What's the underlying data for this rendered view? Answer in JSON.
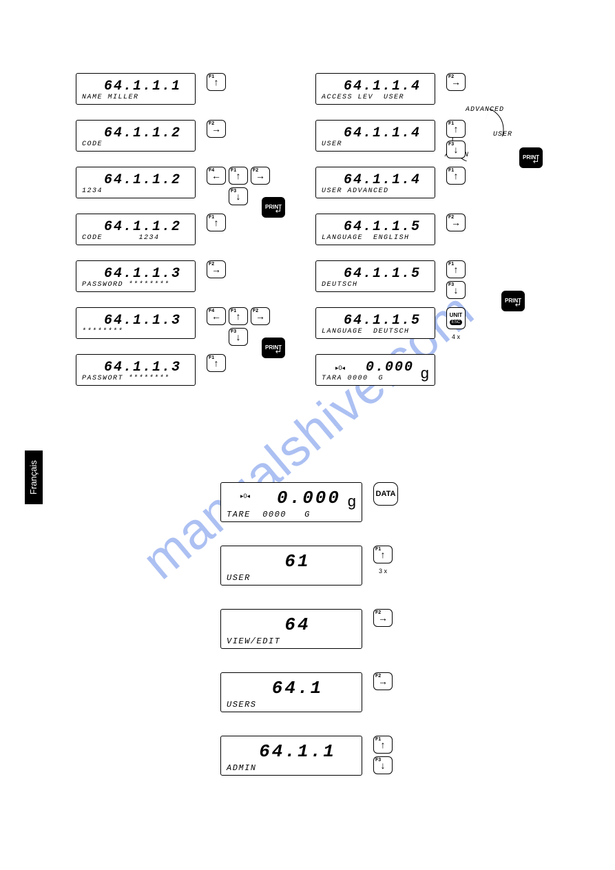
{
  "watermark": "manualshive.com",
  "sideTab": "Français",
  "left": [
    {
      "main": "64.1.1.1",
      "sub": "NAME MILLER",
      "keys": [
        [
          "F1",
          "↑"
        ]
      ]
    },
    {
      "main": "64.1.1.2",
      "sub": "CODE",
      "keys": [
        [
          "F2",
          "→"
        ]
      ]
    },
    {
      "main": "64.1.1.2",
      "sub": "1234",
      "keys": [
        [
          "F4",
          "←"
        ],
        [
          [
            "F1",
            "↑"
          ],
          [
            "F3",
            "↓"
          ]
        ],
        [
          "F2",
          "→"
        ]
      ],
      "trail": "print"
    },
    {
      "main": "64.1.1.2",
      "sub": "CODE       1234",
      "keys": [
        [
          "F1",
          "↑"
        ]
      ]
    },
    {
      "main": "64.1.1.3",
      "sub": "PASSWORD ********",
      "keys": [
        [
          "F2",
          "→"
        ]
      ]
    },
    {
      "main": "64.1.1.3",
      "sub": "********",
      "keys": [
        [
          "F4",
          "←"
        ],
        [
          [
            "F1",
            "↑"
          ],
          [
            "F3",
            "↓"
          ]
        ],
        [
          "F2",
          "→"
        ]
      ],
      "trail": "print"
    },
    {
      "main": "64.1.1.3",
      "sub": "PASSWORT ********",
      "keys": [
        [
          "F1",
          "↑"
        ]
      ]
    }
  ],
  "right": [
    {
      "main": "64.1.1.4",
      "sub": "ACCESS LEV  USER",
      "keys": [
        [
          "F2",
          "→"
        ]
      ]
    },
    {
      "main": "64.1.1.4",
      "sub": "USER",
      "special": "cycle"
    },
    {
      "main": "64.1.1.4",
      "sub": "USER ADVANCED",
      "keys": [
        [
          "F1",
          "↑"
        ]
      ]
    },
    {
      "main": "64.1.1.5",
      "sub": "LANGUAGE  ENGLISH",
      "keys": [
        [
          "F2",
          "→"
        ]
      ]
    },
    {
      "main": "64.1.1.5",
      "sub": "DEUTSCH",
      "keys": [
        [
          [
            "F1",
            "↑"
          ],
          [
            "F3",
            "↓"
          ]
        ]
      ],
      "trail": "print"
    },
    {
      "main": "64.1.1.5",
      "sub": "LANGUAGE  DEUTSCH",
      "special": "unit"
    },
    {
      "main": "0.000",
      "sub": "TARA 0000  G",
      "unit": "g",
      "zero": true
    }
  ],
  "cycleLabels": {
    "top": "ADVANCED",
    "right": "USER",
    "bottom": "ADMIN"
  },
  "unitKey": {
    "label": "UNIT",
    "sub": "ESC",
    "note": "4 x"
  },
  "bottom": [
    {
      "main": "0.000",
      "sub": "TARE  0000   G",
      "unit": "g",
      "zero": true,
      "large": true,
      "btn": "DATA"
    },
    {
      "main": "61",
      "sub": "USER",
      "large": true,
      "keys": [
        [
          "F1",
          "↑"
        ]
      ],
      "note": "3 x"
    },
    {
      "main": "64",
      "sub": "VIEW/EDIT",
      "large": true,
      "keys": [
        [
          "F2",
          "→"
        ]
      ]
    },
    {
      "main": "64.1",
      "sub": "USERS",
      "large": true,
      "keys": [
        [
          "F2",
          "→"
        ]
      ]
    },
    {
      "main": "64.1.1",
      "sub": "ADMIN",
      "large": true,
      "keys": [
        [
          [
            "F1",
            "↑"
          ],
          [
            "F3",
            "↓"
          ]
        ]
      ]
    }
  ],
  "printLabel": "PRINT",
  "layout": {
    "leftX": 110,
    "rightX": 458,
    "topY": 106,
    "rowGap": 68,
    "bottomX": 320,
    "bottomY": 700,
    "bottomGap": 92
  }
}
